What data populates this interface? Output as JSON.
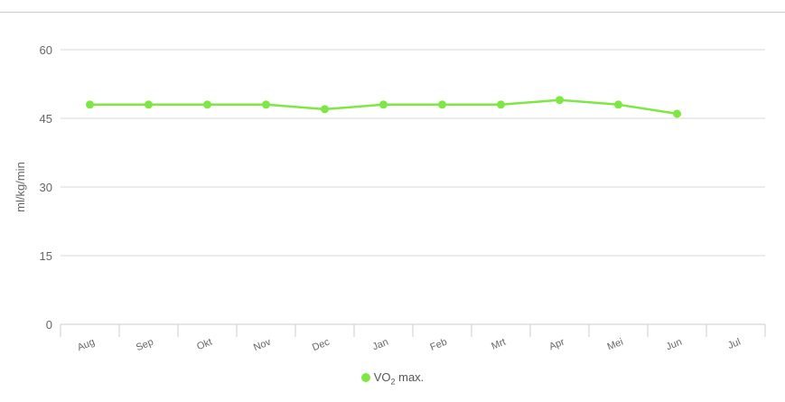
{
  "chart_data": {
    "type": "line",
    "categories": [
      "Aug",
      "Sep",
      "Okt",
      "Nov",
      "Dec",
      "Jan",
      "Feb",
      "Mrt",
      "Apr",
      "Mei",
      "Jun",
      "Jul"
    ],
    "series": [
      {
        "name": "VO₂ max.",
        "values": [
          48,
          48,
          48,
          48,
          47,
          48,
          48,
          48,
          49,
          48,
          46,
          null
        ]
      }
    ],
    "xlabel": "",
    "ylabel": "ml/kg/min",
    "ylim": [
      0,
      60
    ],
    "yticks": [
      "0",
      "15",
      "30",
      "45",
      "60"
    ],
    "grid": true,
    "legend_position": "bottom-center"
  },
  "colors": {
    "series": "#7ee843",
    "grid": "#d8d8d8",
    "axis": "#cccccc"
  },
  "legend": {
    "main": "VO",
    "sub": "2",
    "suffix": " max."
  }
}
